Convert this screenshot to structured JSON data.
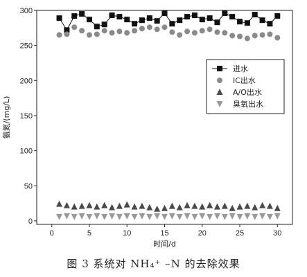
{
  "chart_data": {
    "type": "scatter",
    "xlabel": "时间/d",
    "ylabel": "氨氮/(mg/L)",
    "xlim": [
      -2,
      32
    ],
    "ylim": [
      -5,
      300
    ],
    "xticks": [
      0,
      5,
      10,
      15,
      20,
      25,
      30
    ],
    "yticks": [
      0,
      50,
      100,
      150,
      200,
      250,
      300
    ],
    "grid": false,
    "legend_position": "upper-right",
    "x": [
      1,
      2,
      3,
      4,
      5,
      6,
      7,
      8,
      9,
      10,
      11,
      12,
      13,
      14,
      15,
      16,
      17,
      18,
      19,
      20,
      21,
      22,
      23,
      24,
      25,
      26,
      27,
      28,
      29,
      30
    ],
    "series": [
      {
        "name": "进水",
        "marker": "square",
        "color": "#111111",
        "values": [
          289,
          272,
          292,
          295,
          287,
          277,
          280,
          293,
          291,
          287,
          281,
          286,
          289,
          285,
          296,
          281,
          286,
          291,
          293,
          287,
          289,
          283,
          296,
          291,
          284,
          282,
          294,
          286,
          281,
          292
        ]
      },
      {
        "name": "IC出水",
        "marker": "circle",
        "color": "#8a8a8a",
        "values": [
          265,
          266,
          276,
          271,
          265,
          266,
          271,
          268,
          270,
          268,
          271,
          274,
          276,
          273,
          276,
          269,
          265,
          270,
          268,
          271,
          273,
          269,
          268,
          264,
          263,
          260,
          264,
          265,
          266,
          261
        ]
      },
      {
        "name": "A/O出水",
        "marker": "triangle-up",
        "color": "#4a4a4a",
        "values": [
          24,
          22,
          20,
          21,
          22,
          20,
          22,
          19,
          21,
          23,
          20,
          21,
          19,
          17,
          18,
          21,
          19,
          22,
          21,
          20,
          22,
          20,
          21,
          18,
          20,
          21,
          19,
          22,
          21,
          18
        ]
      },
      {
        "name": "臭氧出水",
        "marker": "triangle-down",
        "color": "#9a9a9a",
        "values": [
          6,
          7,
          6,
          7,
          6,
          7,
          6,
          7,
          6,
          7,
          6,
          7,
          6,
          7,
          6,
          7,
          6,
          7,
          6,
          7,
          6,
          7,
          6,
          7,
          6,
          7,
          6,
          7,
          6,
          7
        ]
      }
    ]
  },
  "caption": "图 3   系统对 NH₄⁺ –N  的去除效果"
}
